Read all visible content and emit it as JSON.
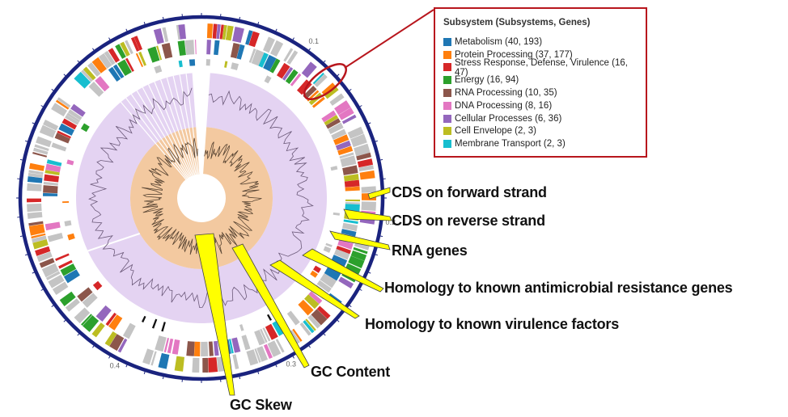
{
  "legend": {
    "title": "Subsystem (Subsystems, Genes)",
    "items": [
      {
        "label": "Metabolism (40, 193)",
        "color": "#1f77b4"
      },
      {
        "label": "Protein Processing (37, 177)",
        "color": "#ff7f0e"
      },
      {
        "label": "Stress Response, Defense, Virulence (16, 47)",
        "color": "#d62728"
      },
      {
        "label": "Energy (16, 94)",
        "color": "#2ca02c"
      },
      {
        "label": "RNA Processing (10, 35)",
        "color": "#8c564b"
      },
      {
        "label": "DNA Processing (8, 16)",
        "color": "#e377c2"
      },
      {
        "label": "Cellular Processes (6, 36)",
        "color": "#9467bd"
      },
      {
        "label": "Cell Envelope (2, 3)",
        "color": "#bcbd22"
      },
      {
        "label": "Membrane Transport (2, 3)",
        "color": "#17becf"
      }
    ]
  },
  "callouts": {
    "cds_forward": "CDS on forward strand",
    "cds_reverse": "CDS on reverse strand",
    "rna_genes": "RNA genes",
    "amr": "Homology to known antimicrobial resistance genes",
    "virulence": "Homology to known virulence factors",
    "gc_content": "GC Content",
    "gc_skew": "GC Skew"
  },
  "ring_ticks": [
    "0.1",
    "0.2",
    "0.3",
    "0.4"
  ],
  "colors": {
    "backbone": "#1a237e",
    "gc_content_band": "#e4d3f2",
    "gc_skew_band": "#f3c9a0",
    "callout_fill": "#ffff00",
    "highlight": "#b8161d"
  }
}
